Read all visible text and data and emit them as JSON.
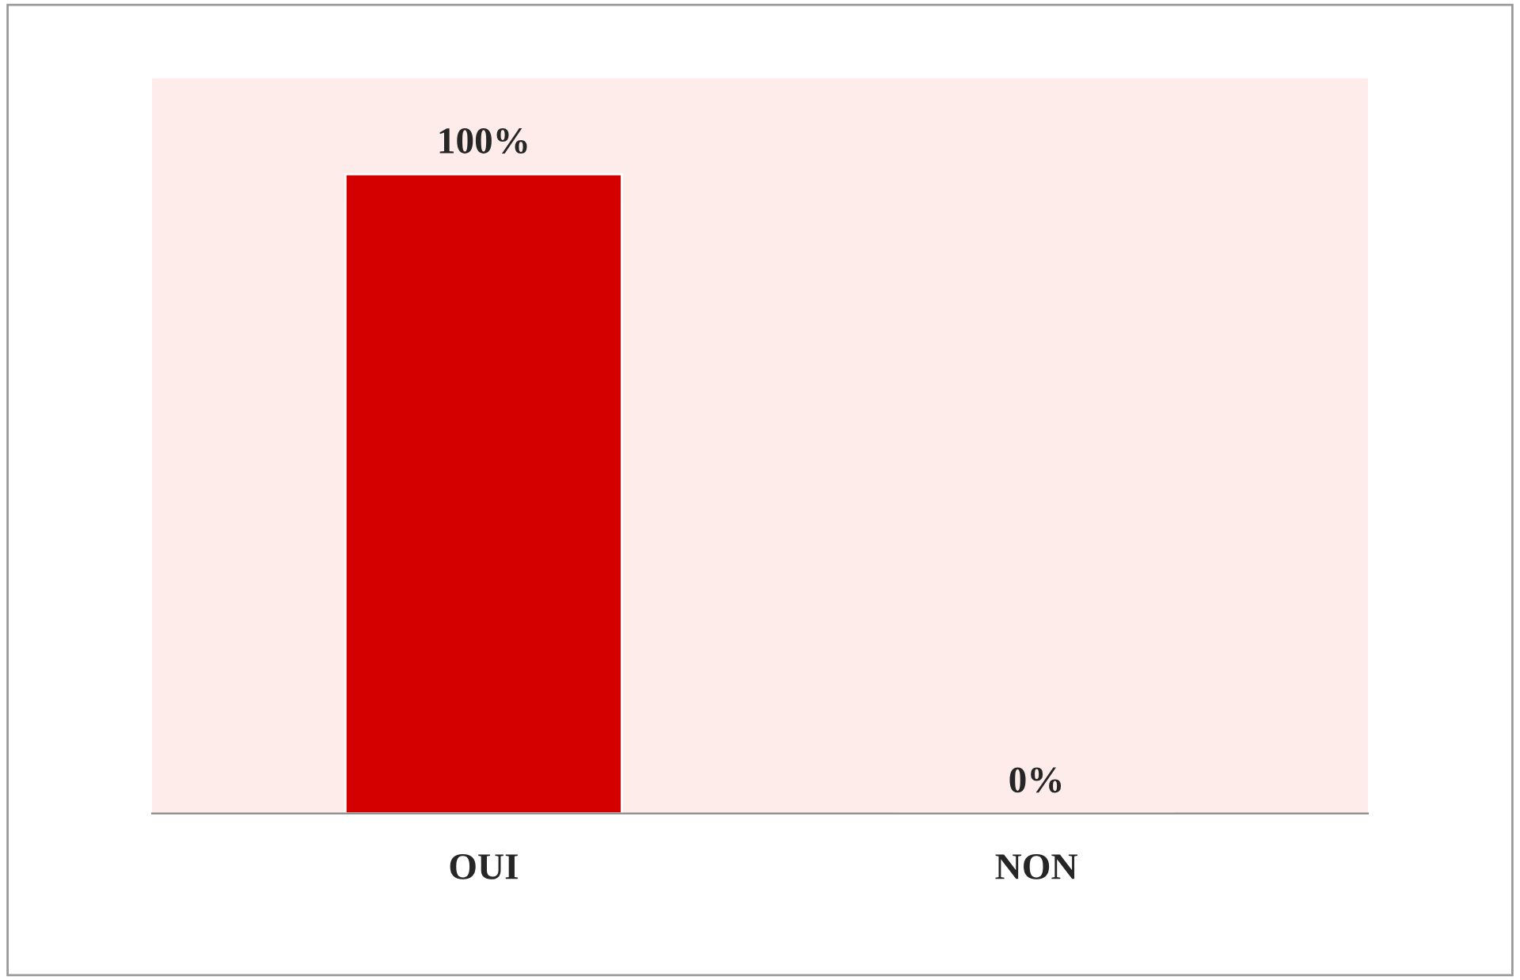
{
  "chart_data": {
    "type": "bar",
    "categories": [
      "OUI",
      "NON"
    ],
    "values": [
      100,
      0
    ],
    "colors": [
      "#d40000",
      "#1f4e79"
    ],
    "value_labels": [
      "100%",
      "0%"
    ],
    "ylim": [
      0,
      115
    ],
    "grid": false,
    "legend": false
  }
}
